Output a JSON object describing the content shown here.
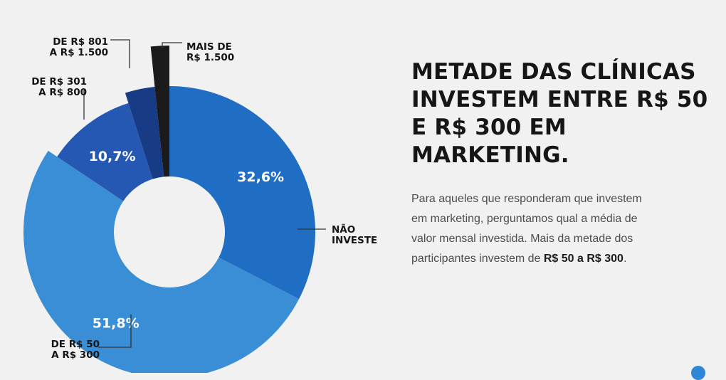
{
  "heading": "METADE DAS CLÍNICAS INVESTEM ENTRE R$ 50 E R$ 300 EM MARKETING.",
  "description": {
    "text": "Para aqueles que responderam que investem em marketing, perguntamos qual a média de valor mensal investida. Mais da metade dos participantes investem de ",
    "highlight": "R$ 50 a R$ 300",
    "end": "."
  },
  "chart_data": {
    "type": "pie",
    "variant": "donut",
    "start": "top",
    "direction": "clockwise",
    "slices": [
      {
        "label": "NÃO INVESTE",
        "value": 32.6,
        "value_label": "32,6%",
        "color": "#1f6ec4"
      },
      {
        "label": "DE R$ 50 A R$ 300",
        "value": 51.8,
        "value_label": "51,8%",
        "color": "#3a8ed6"
      },
      {
        "label": "DE R$ 301 A R$ 800",
        "value": 10.7,
        "value_label": "10,7%",
        "color": "#2458b2"
      },
      {
        "label": "DE R$ 801 A R$ 1.500",
        "value": 3.3,
        "value_label": "",
        "color": "#173c85"
      },
      {
        "label": "MAIS DE R$ 1.500",
        "value": 1.6,
        "value_label": "",
        "color": "#1b1b1b"
      }
    ],
    "callouts": [
      {
        "lines": [
          "NÃO",
          "INVESTE"
        ]
      },
      {
        "lines": [
          "DE R$ 50",
          "A R$ 300"
        ]
      },
      {
        "lines": [
          "DE R$ 301",
          "A R$ 800"
        ]
      },
      {
        "lines": [
          "DE R$ 801",
          "A R$ 1.500"
        ]
      },
      {
        "lines": [
          "MAIS DE",
          "R$ 1.500"
        ]
      }
    ]
  }
}
